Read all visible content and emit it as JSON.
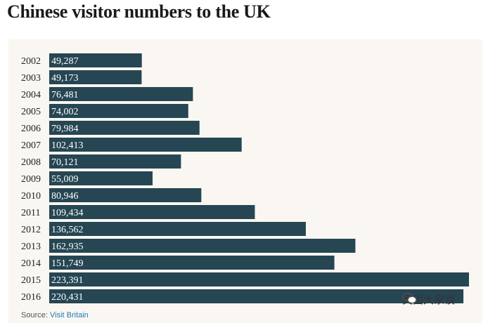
{
  "title": "Chinese visitor numbers to the UK",
  "source_label": "Source:",
  "source_name": "Visit Britain",
  "watermark_text": "英国大家谈",
  "chart_data": {
    "type": "bar",
    "orientation": "horizontal",
    "title": "Chinese visitor numbers to the UK",
    "categories": [
      "2002",
      "2003",
      "2004",
      "2005",
      "2006",
      "2007",
      "2008",
      "2009",
      "2010",
      "2011",
      "2012",
      "2013",
      "2014",
      "2015",
      "2016"
    ],
    "values": [
      49287,
      49173,
      76481,
      74002,
      79984,
      102413,
      70121,
      55009,
      80946,
      109434,
      136562,
      162935,
      151749,
      223391,
      220431
    ],
    "value_labels": [
      "49,287",
      "49,173",
      "76,481",
      "74,002",
      "79,984",
      "102,413",
      "70,121",
      "55,009",
      "80,946",
      "109,434",
      "136,562",
      "162,935",
      "151,749",
      "223,391",
      "220,431"
    ],
    "xlim": [
      0,
      223391
    ],
    "grid": false,
    "bar_color": "#264653",
    "label_color": "#ffffff"
  }
}
